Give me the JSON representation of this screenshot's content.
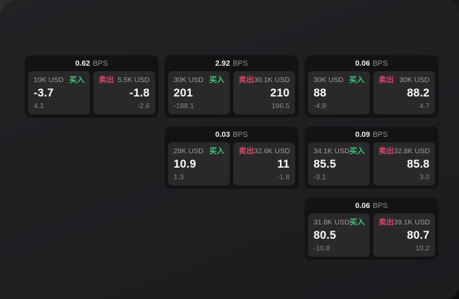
{
  "labels": {
    "bps_unit": "BPS",
    "buy": "买入",
    "sell": "卖出"
  },
  "colors": {
    "buy_green": "#3bc96f",
    "sell_red": "#dc4765",
    "window_background": "#1f1f22",
    "card_background": "#131315",
    "tile_background": "#29292c",
    "price_text": "#fafafa",
    "muted_text": "#9c9c9e"
  },
  "cards": [
    {
      "col": 1,
      "row": 1,
      "bps": "0.62",
      "buy": {
        "amount": "10K USD",
        "price": "-3.7",
        "sub": "4.3"
      },
      "sell": {
        "amount": "5.5K USD",
        "price": "-1.8",
        "sub": "-2.6"
      }
    },
    {
      "col": 2,
      "row": 1,
      "bps": "2.92",
      "buy": {
        "amount": "30K USD",
        "price": "201",
        "sub": "-188.1"
      },
      "sell": {
        "amount": "30.1K USD",
        "price": "210",
        "sub": "196.5"
      }
    },
    {
      "col": 3,
      "row": 1,
      "bps": "0.06",
      "buy": {
        "amount": "30K USD",
        "price": "88",
        "sub": "-4.9"
      },
      "sell": {
        "amount": "30K USD",
        "price": "88.2",
        "sub": "4.7"
      }
    },
    {
      "col": 2,
      "row": 2,
      "bps": "0.03",
      "buy": {
        "amount": "28K USD",
        "price": "10.9",
        "sub": "1.3"
      },
      "sell": {
        "amount": "32.6K USD",
        "price": "11",
        "sub": "-1.8"
      }
    },
    {
      "col": 3,
      "row": 2,
      "bps": "0.09",
      "buy": {
        "amount": "34.1K USD",
        "price": "85.5",
        "sub": "-3.1"
      },
      "sell": {
        "amount": "32.8K USD",
        "price": "85.8",
        "sub": "3.0"
      }
    },
    {
      "col": 3,
      "row": 3,
      "bps": "0.06",
      "buy": {
        "amount": "31.8K USD",
        "price": "80.5",
        "sub": "-10.8"
      },
      "sell": {
        "amount": "39.1K USD",
        "price": "80.7",
        "sub": "10.2"
      }
    }
  ]
}
